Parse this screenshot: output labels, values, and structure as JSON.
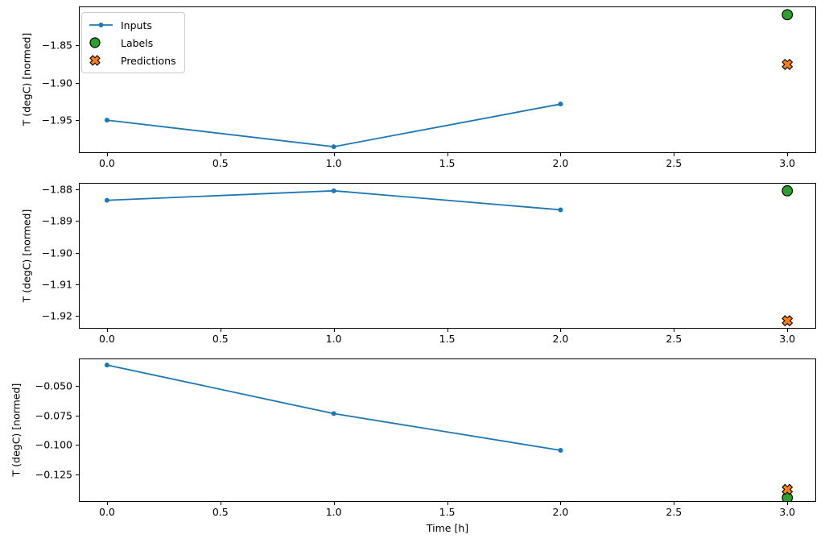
{
  "figure": {
    "xlabel": "Time [h]",
    "background": "#ffffff",
    "axis_color": "#000000",
    "legend": {
      "location": "upper left of first subplot",
      "items": [
        {
          "label": "Inputs",
          "marker": "line-with-dot",
          "color": "#1f77b4"
        },
        {
          "label": "Labels",
          "marker": "circle",
          "color": "#2ca02c"
        },
        {
          "label": "Predictions",
          "marker": "x-cross",
          "color": "#ff7f0e"
        }
      ]
    },
    "colors": {
      "inputs": "#1f77b4",
      "labels": "#2ca02c",
      "predictions": "#ff7f0e",
      "marker_edge": "#000000"
    }
  },
  "chart_data": [
    {
      "type": "line",
      "ylabel": "T (degC) [normed]",
      "series": [
        {
          "name": "Inputs",
          "style": "line+marker",
          "x": [
            0,
            1,
            2
          ],
          "y": [
            -1.95,
            -1.9855,
            -1.9285
          ]
        },
        {
          "name": "Labels",
          "style": "scatter-circle",
          "x": [
            3
          ],
          "y": [
            -1.809
          ]
        },
        {
          "name": "Predictions",
          "style": "scatter-x",
          "x": [
            3
          ],
          "y": [
            -1.8755
          ]
        }
      ],
      "xlim": [
        -0.124,
        3.127
      ],
      "ylim": [
        -1.994,
        -1.798
      ],
      "xticks": [
        0,
        0.5,
        1,
        1.5,
        2,
        2.5,
        3
      ],
      "xtick_labels": [
        "0.0",
        "0.5",
        "1.0",
        "1.5",
        "2.0",
        "2.5",
        "3.0"
      ],
      "yticks": [
        -1.85,
        -1.9,
        -1.95
      ],
      "ytick_labels": [
        "−1.85",
        "−1.90",
        "−1.95"
      ],
      "grid": false,
      "legend_visible": true
    },
    {
      "type": "line",
      "ylabel": "T (degC) [normed]",
      "series": [
        {
          "name": "Inputs",
          "style": "line+marker",
          "x": [
            0,
            1,
            2
          ],
          "y": [
            -1.8835,
            -1.8805,
            -1.8865
          ]
        },
        {
          "name": "Labels",
          "style": "scatter-circle",
          "x": [
            3
          ],
          "y": [
            -1.8805
          ]
        },
        {
          "name": "Predictions",
          "style": "scatter-x",
          "x": [
            3
          ],
          "y": [
            -1.9215
          ]
        }
      ],
      "xlim": [
        -0.124,
        3.127
      ],
      "ylim": [
        -1.924,
        -1.878
      ],
      "xticks": [
        0,
        0.5,
        1,
        1.5,
        2,
        2.5,
        3
      ],
      "xtick_labels": [
        "0.0",
        "0.5",
        "1.0",
        "1.5",
        "2.0",
        "2.5",
        "3.0"
      ],
      "yticks": [
        -1.88,
        -1.89,
        -1.9,
        -1.91,
        -1.92
      ],
      "ytick_labels": [
        "−1.88",
        "−1.89",
        "−1.90",
        "−1.91",
        "−1.92"
      ],
      "grid": false,
      "legend_visible": false
    },
    {
      "type": "line",
      "ylabel": "T (degC) [normed]",
      "series": [
        {
          "name": "Inputs",
          "style": "line+marker",
          "x": [
            0,
            1,
            2
          ],
          "y": [
            -0.0325,
            -0.0735,
            -0.1045
          ]
        },
        {
          "name": "Labels",
          "style": "scatter-circle",
          "x": [
            3
          ],
          "y": [
            -0.1445
          ]
        },
        {
          "name": "Predictions",
          "style": "scatter-x",
          "x": [
            3
          ],
          "y": [
            -0.1375
          ]
        }
      ],
      "xlim": [
        -0.124,
        3.127
      ],
      "ylim": [
        -0.148,
        -0.027
      ],
      "xticks": [
        0,
        0.5,
        1,
        1.5,
        2,
        2.5,
        3
      ],
      "xtick_labels": [
        "0.0",
        "0.5",
        "1.0",
        "1.5",
        "2.0",
        "2.5",
        "3.0"
      ],
      "yticks": [
        -0.05,
        -0.075,
        -0.1,
        -0.125
      ],
      "ytick_labels": [
        "−0.050",
        "−0.075",
        "−0.100",
        "−0.125"
      ],
      "grid": false,
      "legend_visible": false
    }
  ]
}
